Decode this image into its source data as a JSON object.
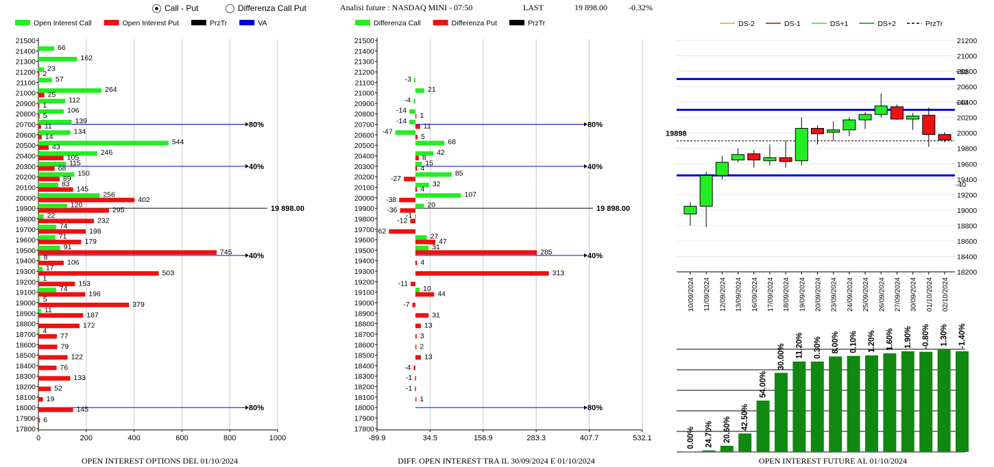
{
  "radios": [
    {
      "label": "Call - Put",
      "selected": true
    },
    {
      "label": "Differenza Call Put",
      "selected": false
    }
  ],
  "header": {
    "title": "Analisi future : NASDAQ MINI - 07:50",
    "last_label": "LAST",
    "last_value": "19 898.00",
    "change": "-0.32%"
  },
  "colors": {
    "green": "#22ee22",
    "red": "#ee1111",
    "blue": "#0000dd",
    "dark_green": "#118811",
    "black": "#000000"
  },
  "chart_data": [
    {
      "id": "oi",
      "type": "bar",
      "orientation": "horizontal",
      "title": "OPEN INTEREST OPTIONS DEL 01/10/2024",
      "legend": [
        {
          "name": "Open Interest Call",
          "color": "#22ee22"
        },
        {
          "name": "Open Interest Put",
          "color": "#ee1111"
        },
        {
          "name": "PrzTr",
          "color": "#000000"
        },
        {
          "name": "VA",
          "color": "#0000dd"
        }
      ],
      "strikes": [
        21500,
        21400,
        21300,
        21200,
        21100,
        21000,
        20900,
        20800,
        20700,
        20600,
        20500,
        20400,
        20300,
        20200,
        20100,
        20000,
        19900,
        19800,
        19700,
        19600,
        19500,
        19400,
        19300,
        19200,
        19100,
        19000,
        18900,
        18800,
        18700,
        18600,
        18500,
        18400,
        18300,
        18200,
        18100,
        18000,
        17900,
        17800
      ],
      "call": [
        null,
        66,
        162,
        23,
        57,
        264,
        112,
        106,
        139,
        134,
        544,
        246,
        115,
        150,
        83,
        256,
        120,
        22,
        74,
        71,
        91,
        8,
        17,
        1,
        74,
        5,
        11,
        null,
        4,
        null,
        null,
        null,
        null,
        null,
        null,
        null,
        null,
        null
      ],
      "put": [
        null,
        null,
        null,
        2,
        null,
        25,
        1,
        5,
        11,
        14,
        43,
        105,
        68,
        89,
        145,
        402,
        295,
        232,
        198,
        179,
        745,
        106,
        503,
        153,
        196,
        379,
        187,
        172,
        77,
        79,
        122,
        76,
        133,
        52,
        19,
        145,
        6,
        null
      ],
      "xticks": [
        "0",
        "200",
        "400",
        "600",
        "800",
        "1000"
      ],
      "xlim": [
        0,
        1000
      ],
      "ref_lines": [
        {
          "strike": 20700,
          "label": "80%",
          "color": "#0000dd"
        },
        {
          "strike": 20300,
          "label": "40%",
          "color": "#0000dd"
        },
        {
          "strike": 19900,
          "label": "19 898.00",
          "color": "#000000"
        },
        {
          "strike": 19450,
          "label": "40%",
          "color": "#0000dd"
        },
        {
          "strike": 18000,
          "label": "80%",
          "color": "#0000dd"
        }
      ]
    },
    {
      "id": "diff",
      "type": "bar",
      "orientation": "horizontal",
      "title": "DIFF. OPEN INTEREST TRA IL 30/09/2024 E 01/10/2024",
      "legend": [
        {
          "name": "Differenza Call",
          "color": "#22ee22"
        },
        {
          "name": "Differenza Put",
          "color": "#ee1111"
        },
        {
          "name": "PrzTr",
          "color": "#000000"
        }
      ],
      "strikes": [
        21500,
        21400,
        21300,
        21200,
        21100,
        21000,
        20900,
        20800,
        20700,
        20600,
        20500,
        20400,
        20300,
        20200,
        20100,
        20000,
        19900,
        19800,
        19700,
        19600,
        19500,
        19400,
        19300,
        19200,
        19100,
        19000,
        18900,
        18800,
        18700,
        18600,
        18500,
        18400,
        18300,
        18200,
        18100,
        18000,
        17900,
        17800
      ],
      "call": [
        null,
        null,
        null,
        null,
        -3,
        21,
        -4,
        -14,
        -14,
        -47,
        68,
        42,
        15,
        85,
        32,
        107,
        20,
        -1,
        null,
        27,
        31,
        null,
        null,
        null,
        10,
        null,
        null,
        null,
        null,
        null,
        null,
        null,
        null,
        null,
        null,
        null,
        null,
        null
      ],
      "put": [
        null,
        null,
        null,
        null,
        null,
        null,
        null,
        1,
        11,
        5,
        null,
        8,
        4,
        -27,
        4,
        -38,
        -36,
        -12,
        -62,
        47,
        285,
        4,
        313,
        -11,
        44,
        -7,
        31,
        13,
        3,
        2,
        13,
        -4,
        -1,
        -1,
        1,
        null,
        null,
        null
      ],
      "xticks": [
        "-89.9",
        "34.5",
        "158.9",
        "283.3",
        "407.7",
        "532.1"
      ],
      "xlim": [
        -89.9,
        532.1
      ],
      "ref_lines": [
        {
          "strike": 20700,
          "label": "80%",
          "color": "#0000dd"
        },
        {
          "strike": 20300,
          "label": "40%",
          "color": "#0000dd"
        },
        {
          "strike": 19900,
          "label": "19 898.00",
          "color": "#000000"
        },
        {
          "strike": 19450,
          "label": "40%",
          "color": "#0000dd"
        },
        {
          "strike": 18000,
          "label": "80%",
          "color": "#0000dd"
        }
      ]
    },
    {
      "id": "candles",
      "type": "candlestick",
      "legend": [
        {
          "name": "DS-2",
          "color": "#d4956a",
          "style": "solid"
        },
        {
          "name": "DS-1",
          "color": "#cc0000",
          "style": "solid"
        },
        {
          "name": "DS+1",
          "color": "#22ee22",
          "style": "solid"
        },
        {
          "name": "DS+2",
          "color": "#118811",
          "style": "solid"
        },
        {
          "name": "PrzTr",
          "color": "#000000",
          "style": "dashed"
        }
      ],
      "dates": [
        "10/09/2024",
        "11/09/2024",
        "12/09/2024",
        "13/09/2024",
        "16/09/2024",
        "17/09/2024",
        "18/09/2024",
        "19/09/2024",
        "20/09/2024",
        "23/09/2024",
        "24/09/2024",
        "25/09/2024",
        "26/09/2024",
        "27/09/2024",
        "30/09/2024",
        "01/10/2024",
        "02/10/2024"
      ],
      "ohlc": [
        [
          18950,
          19100,
          18800,
          19050
        ],
        [
          19050,
          19500,
          18780,
          19450
        ],
        [
          19450,
          19700,
          19400,
          19620
        ],
        [
          19650,
          19800,
          19620,
          19720
        ],
        [
          19730,
          19780,
          19550,
          19650
        ],
        [
          19640,
          19850,
          19580,
          19680
        ],
        [
          19680,
          19900,
          19550,
          19630
        ],
        [
          19640,
          20200,
          19580,
          20060
        ],
        [
          20060,
          20100,
          19850,
          19990
        ],
        [
          20010,
          20150,
          19900,
          20040
        ],
        [
          20040,
          20200,
          19960,
          20170
        ],
        [
          20170,
          20270,
          20050,
          20240
        ],
        [
          20240,
          20510,
          20200,
          20350
        ],
        [
          20340,
          20370,
          20170,
          20180
        ],
        [
          20180,
          20260,
          20040,
          20220
        ],
        [
          20230,
          20330,
          19820,
          19980
        ],
        [
          19980,
          20010,
          19880,
          19910
        ]
      ],
      "yticks": [
        "18200",
        "18400",
        "18600",
        "18800",
        "19000",
        "19200",
        "19400",
        "19600",
        "19800",
        "20000",
        "20200",
        "20400",
        "20600",
        "20800",
        "21000",
        "21200"
      ],
      "ylim": [
        18200,
        21200
      ],
      "price_label": "19898",
      "price_line": 19898,
      "levels": [
        {
          "value": 20700,
          "label": "+80"
        },
        {
          "value": 20300,
          "label": "+40"
        },
        {
          "value": 19450,
          "label": "-40"
        }
      ]
    },
    {
      "id": "oi_future",
      "type": "bar",
      "title": "OPEN INTEREST FUTURE AL 01/10/2024",
      "labels": [
        "0.00%",
        "24.70%",
        "20.60%",
        "42.50%",
        "54.00%",
        "30.00%",
        "11.20%",
        "0.30%",
        "8.00%",
        "0.10%",
        "1.20%",
        "1.60%",
        "1.90%",
        "-0.80%",
        "1.30%",
        "-1.40%"
      ],
      "values": [
        0.2,
        1.5,
        6,
        18,
        50,
        77,
        88,
        88,
        93,
        93.5,
        94,
        96,
        98,
        97.5,
        100,
        98
      ],
      "ylim": [
        0,
        100
      ]
    }
  ]
}
